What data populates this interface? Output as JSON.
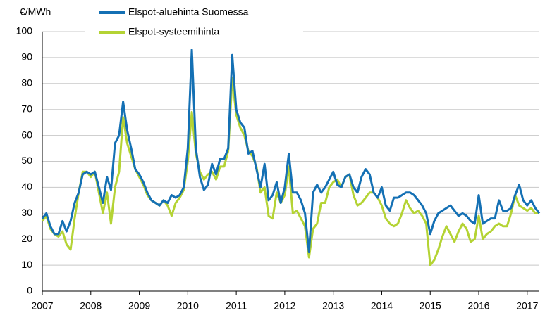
{
  "chart_data": {
    "type": "line",
    "y_label": "€/MWh",
    "categories": [
      "2007",
      null,
      null,
      null,
      null,
      null,
      null,
      null,
      null,
      null,
      null,
      null,
      "2008",
      null,
      null,
      null,
      null,
      null,
      null,
      null,
      null,
      null,
      null,
      null,
      "2009",
      null,
      null,
      null,
      null,
      null,
      null,
      null,
      null,
      null,
      null,
      null,
      "2010",
      null,
      null,
      null,
      null,
      null,
      null,
      null,
      null,
      null,
      null,
      null,
      "2011",
      null,
      null,
      null,
      null,
      null,
      null,
      null,
      null,
      null,
      null,
      null,
      "2012",
      null,
      null,
      null,
      null,
      null,
      null,
      null,
      null,
      null,
      null,
      null,
      "2013",
      null,
      null,
      null,
      null,
      null,
      null,
      null,
      null,
      null,
      null,
      null,
      "2014",
      null,
      null,
      null,
      null,
      null,
      null,
      null,
      null,
      null,
      null,
      null,
      "2015",
      null,
      null,
      null,
      null,
      null,
      null,
      null,
      null,
      null,
      null,
      null,
      "2016",
      null,
      null,
      null,
      null,
      null,
      null,
      null,
      null,
      null,
      null,
      null,
      "2017",
      null,
      null,
      null
    ],
    "series": [
      {
        "name": "Elspot-aluehinta Suomessa",
        "color": "#1470b4",
        "values": [
          28,
          30,
          25,
          22,
          22,
          27,
          23,
          27,
          34,
          38,
          45,
          46,
          45,
          46,
          40,
          34,
          44,
          39,
          57,
          60,
          73,
          62,
          55,
          47,
          45,
          42,
          38,
          35,
          34,
          33,
          35,
          34,
          37,
          36,
          37,
          40,
          55,
          93,
          55,
          44,
          39,
          41,
          49,
          45,
          51,
          51,
          55,
          91,
          70,
          65,
          63,
          53,
          54,
          47,
          40,
          49,
          35,
          37,
          42,
          34,
          40,
          53,
          38,
          38,
          35,
          30,
          15,
          38,
          41,
          38,
          40,
          43,
          46,
          41,
          40,
          44,
          45,
          40,
          38,
          44,
          47,
          45,
          38,
          36,
          40,
          33,
          31,
          36,
          36,
          37,
          38,
          38,
          37,
          35,
          33,
          30,
          22,
          27,
          30,
          31,
          32,
          33,
          31,
          29,
          30,
          29,
          27,
          26,
          37,
          26,
          27,
          28,
          28,
          35,
          31,
          31,
          32,
          37,
          41,
          35,
          33,
          35,
          32,
          30
        ]
      },
      {
        "name": "Elspot-systeemihinta",
        "color": "#b4d334",
        "values": [
          27,
          29,
          24,
          22,
          21,
          23,
          18,
          16,
          28,
          38,
          46,
          46,
          44,
          46,
          38,
          30,
          38,
          26,
          40,
          46,
          67,
          57,
          52,
          47,
          44,
          41,
          37,
          35,
          34,
          33,
          35,
          33,
          29,
          34,
          36,
          39,
          50,
          69,
          53,
          46,
          43,
          45,
          46,
          43,
          48,
          48,
          54,
          82,
          68,
          63,
          60,
          54,
          52,
          48,
          38,
          40,
          29,
          28,
          38,
          34,
          37,
          48,
          30,
          31,
          28,
          25,
          13,
          24,
          26,
          34,
          34,
          40,
          42,
          43,
          40,
          44,
          45,
          37,
          33,
          34,
          36,
          38,
          38,
          36,
          33,
          28,
          26,
          25,
          26,
          30,
          35,
          32,
          30,
          31,
          29,
          26,
          10,
          12,
          16,
          21,
          25,
          22,
          19,
          23,
          26,
          24,
          19,
          20,
          29,
          20,
          22,
          23,
          25,
          26,
          25,
          25,
          30,
          37,
          33,
          32,
          31,
          32,
          30,
          30
        ]
      }
    ],
    "ylim": [
      0,
      100
    ],
    "yticks": [
      0,
      10,
      20,
      30,
      40,
      50,
      60,
      70,
      80,
      90,
      100
    ],
    "grid": true,
    "legend": "top"
  }
}
